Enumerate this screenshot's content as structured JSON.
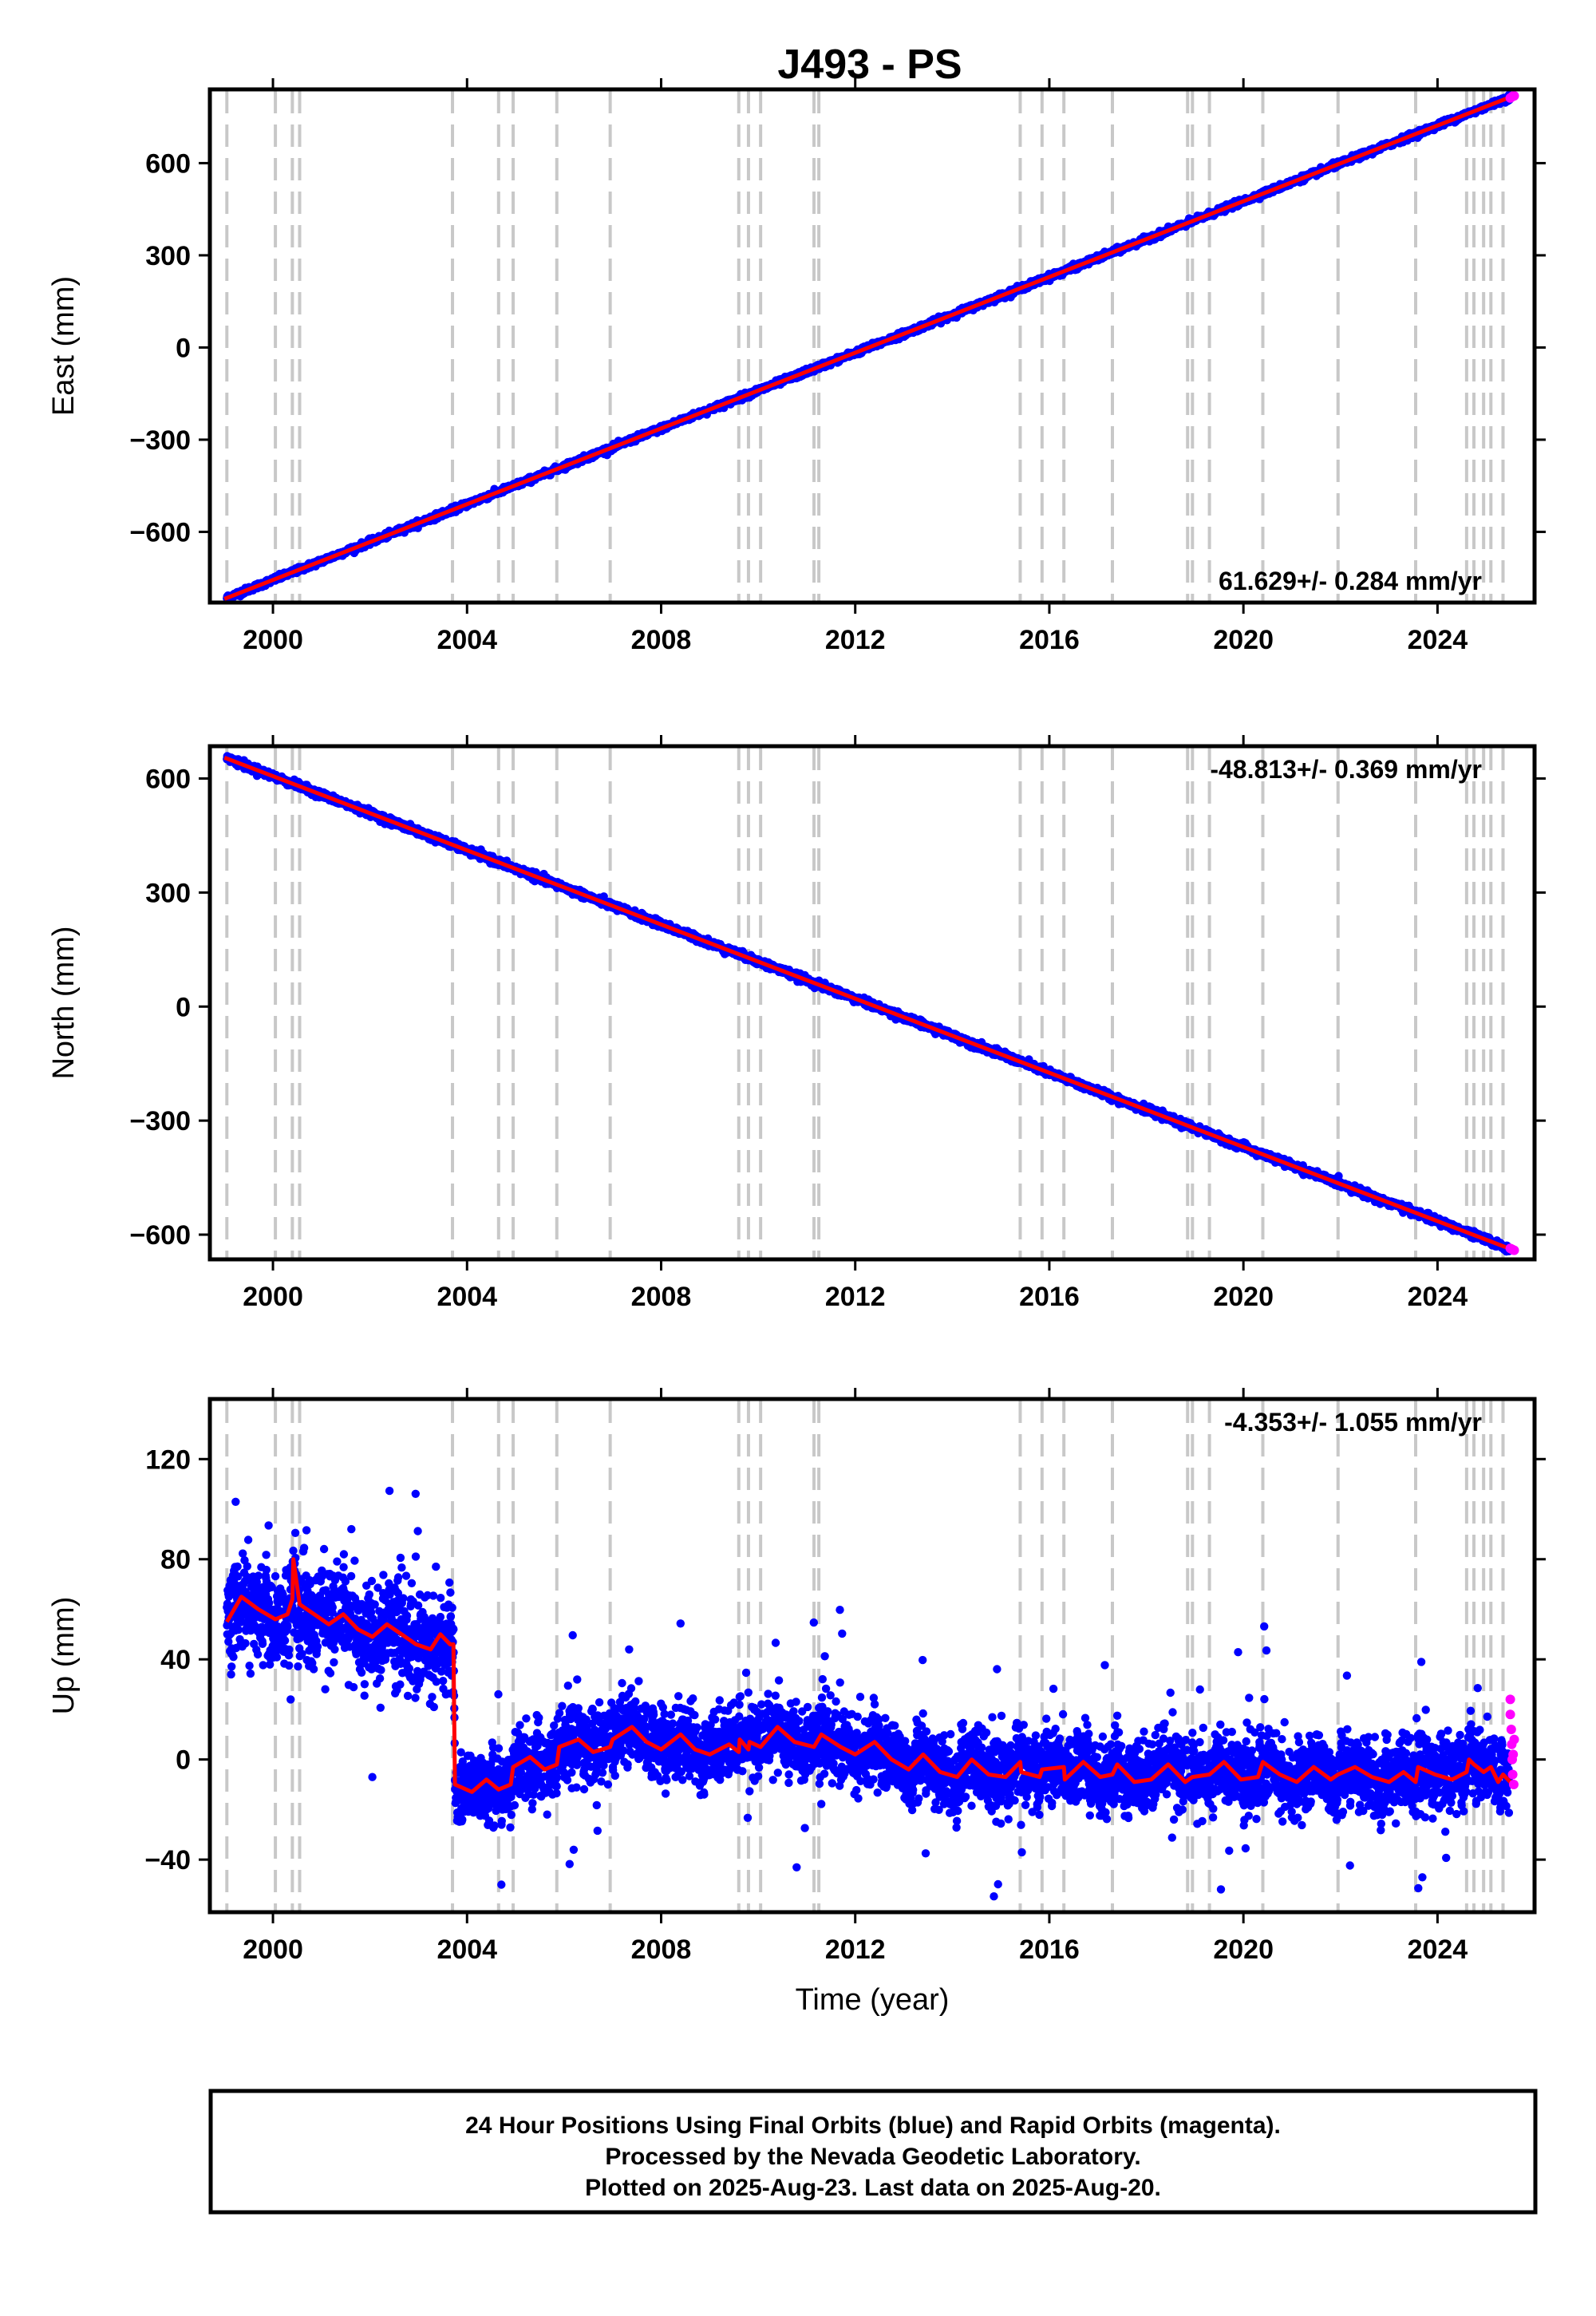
{
  "chart_data": {
    "title": "J493 - PS",
    "type": "scatter",
    "xlabel": "Time (year)",
    "xlim": [
      1998.7,
      2026.0
    ],
    "x_ticks": [
      2000,
      2004,
      2008,
      2012,
      2016,
      2020,
      2024
    ],
    "colors": {
      "final_orbits": "#0000ff",
      "rapid_orbits": "#ff00ff",
      "model": "#ff0000",
      "event_lines": "#c8c8c8"
    },
    "event_lines": [
      1999.05,
      2000.05,
      2000.4,
      2000.55,
      2003.7,
      2004.65,
      2004.95,
      2005.85,
      2006.95,
      2009.6,
      2009.8,
      2010.05,
      2011.15,
      2011.25,
      2015.4,
      2015.85,
      2016.3,
      2017.3,
      2018.85,
      2018.95,
      2019.3,
      2020.4,
      2021.95,
      2023.55,
      2024.6,
      2024.75,
      2024.95,
      2025.1,
      2025.35
    ],
    "panels": [
      {
        "id": "east",
        "ylabel": "East (mm)",
        "ylim": [
          -830,
          840
        ],
        "y_ticks": [
          -600,
          -300,
          0,
          300,
          600
        ],
        "rate_text": "61.629+/- 0.284 mm/yr",
        "rate_position": "bottom-right",
        "model_points": [
          [
            1999.0,
            -818
          ],
          [
            2025.55,
            818
          ]
        ],
        "rapid_points": [
          [
            2025.5,
            812
          ],
          [
            2025.52,
            814
          ],
          [
            2025.55,
            818
          ],
          [
            2025.58,
            819
          ]
        ]
      },
      {
        "id": "north",
        "ylabel": "North (mm)",
        "ylim": [
          -665,
          685
        ],
        "y_ticks": [
          -600,
          -300,
          0,
          300,
          600
        ],
        "rate_text": "-48.813+/- 0.369 mm/yr",
        "rate_position": "top-right",
        "model_points": [
          [
            1999.0,
            655
          ],
          [
            2025.55,
            -640
          ]
        ],
        "rapid_points": [
          [
            2025.5,
            -636
          ],
          [
            2025.53,
            -638
          ],
          [
            2025.56,
            -640
          ],
          [
            2025.58,
            -641
          ]
        ]
      },
      {
        "id": "up",
        "ylabel": "Up (mm)",
        "ylim": [
          -61,
          144
        ],
        "y_ticks": [
          -40,
          0,
          40,
          80,
          120
        ],
        "rate_text": "-4.353+/- 1.055 mm/yr",
        "rate_position": "top-right",
        "model_points": [
          [
            1999.05,
            55
          ],
          [
            1999.35,
            65
          ],
          [
            1999.7,
            60
          ],
          [
            2000.05,
            56
          ],
          [
            2000.3,
            58
          ],
          [
            2000.4,
            64
          ],
          [
            2000.42,
            80
          ],
          [
            2000.55,
            62
          ],
          [
            2000.85,
            58
          ],
          [
            2001.15,
            54
          ],
          [
            2001.45,
            58
          ],
          [
            2001.75,
            52
          ],
          [
            2002.05,
            49
          ],
          [
            2002.35,
            54
          ],
          [
            2002.65,
            50
          ],
          [
            2002.95,
            46
          ],
          [
            2003.25,
            44
          ],
          [
            2003.45,
            50
          ],
          [
            2003.65,
            46
          ],
          [
            2003.72,
            46
          ],
          [
            2003.75,
            -10
          ],
          [
            2004.1,
            -13
          ],
          [
            2004.4,
            -8
          ],
          [
            2004.65,
            -12
          ],
          [
            2004.9,
            -10
          ],
          [
            2004.95,
            -3
          ],
          [
            2005.3,
            1
          ],
          [
            2005.6,
            -4
          ],
          [
            2005.85,
            -2
          ],
          [
            2005.9,
            5
          ],
          [
            2006.3,
            8
          ],
          [
            2006.6,
            3
          ],
          [
            2006.95,
            5
          ],
          [
            2007.0,
            8
          ],
          [
            2007.4,
            13
          ],
          [
            2007.7,
            7
          ],
          [
            2008.0,
            4
          ],
          [
            2008.4,
            10
          ],
          [
            2008.7,
            4
          ],
          [
            2009.0,
            2
          ],
          [
            2009.4,
            6
          ],
          [
            2009.6,
            3
          ],
          [
            2009.62,
            8
          ],
          [
            2009.8,
            4
          ],
          [
            2009.82,
            7
          ],
          [
            2010.05,
            5
          ],
          [
            2010.4,
            13
          ],
          [
            2010.75,
            7
          ],
          [
            2011.15,
            5
          ],
          [
            2011.3,
            10
          ],
          [
            2011.7,
            5
          ],
          [
            2012.0,
            2
          ],
          [
            2012.4,
            7
          ],
          [
            2012.75,
            0
          ],
          [
            2013.1,
            -4
          ],
          [
            2013.4,
            2
          ],
          [
            2013.75,
            -5
          ],
          [
            2014.1,
            -7
          ],
          [
            2014.4,
            0
          ],
          [
            2014.75,
            -6
          ],
          [
            2015.1,
            -7
          ],
          [
            2015.4,
            -1
          ],
          [
            2015.42,
            -5
          ],
          [
            2015.8,
            -7
          ],
          [
            2015.85,
            -4
          ],
          [
            2016.3,
            -3
          ],
          [
            2016.32,
            -8
          ],
          [
            2016.7,
            -1
          ],
          [
            2017.05,
            -7
          ],
          [
            2017.3,
            -6
          ],
          [
            2017.4,
            -2
          ],
          [
            2017.75,
            -9
          ],
          [
            2018.1,
            -8
          ],
          [
            2018.45,
            -2
          ],
          [
            2018.8,
            -9
          ],
          [
            2018.95,
            -7
          ],
          [
            2019.3,
            -6
          ],
          [
            2019.6,
            -1
          ],
          [
            2019.95,
            -8
          ],
          [
            2020.3,
            -7
          ],
          [
            2020.4,
            -1
          ],
          [
            2020.75,
            -6
          ],
          [
            2021.1,
            -9
          ],
          [
            2021.45,
            -3
          ],
          [
            2021.8,
            -8
          ],
          [
            2021.95,
            -6
          ],
          [
            2022.3,
            -3
          ],
          [
            2022.65,
            -7
          ],
          [
            2023.0,
            -9
          ],
          [
            2023.3,
            -5
          ],
          [
            2023.55,
            -9
          ],
          [
            2023.6,
            -3
          ],
          [
            2023.95,
            -6
          ],
          [
            2024.3,
            -8
          ],
          [
            2024.6,
            -5
          ],
          [
            2024.65,
            0
          ],
          [
            2024.75,
            -2
          ],
          [
            2024.95,
            -5
          ],
          [
            2025.1,
            -3
          ],
          [
            2025.25,
            -9
          ],
          [
            2025.35,
            -6
          ],
          [
            2025.55,
            -10
          ]
        ],
        "rapid_points": [
          [
            2025.5,
            24
          ],
          [
            2025.5,
            18
          ],
          [
            2025.52,
            12
          ],
          [
            2025.53,
            6
          ],
          [
            2025.54,
            0
          ],
          [
            2025.55,
            -6
          ],
          [
            2025.56,
            2
          ],
          [
            2025.57,
            -10
          ],
          [
            2025.58,
            8
          ]
        ]
      }
    ]
  },
  "footer": {
    "line1": "24 Hour Positions Using Final Orbits (blue) and Rapid Orbits (magenta).",
    "line2": "Processed by the Nevada Geodetic Laboratory.",
    "line3": "Plotted on 2025-Aug-23. Last data on 2025-Aug-20."
  }
}
